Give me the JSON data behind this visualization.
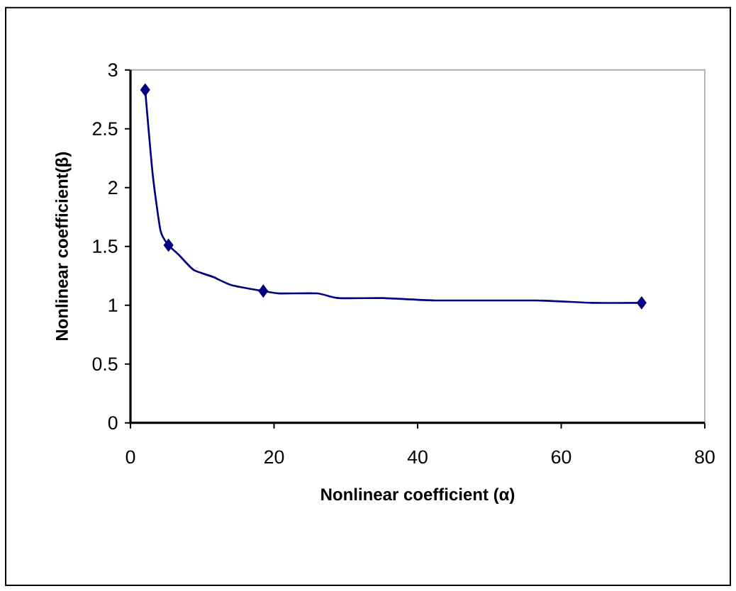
{
  "chart_data": {
    "type": "line",
    "xlabel": "Nonlinear coefficient (α)",
    "ylabel": "Nonlinear coefficient(β)",
    "xlim": [
      0,
      80
    ],
    "ylim": [
      0,
      3
    ],
    "xticks": [
      0,
      20,
      40,
      60,
      80
    ],
    "yticks": [
      0,
      0.5,
      1,
      1.5,
      2,
      2.5,
      3
    ],
    "series": [
      {
        "color": "#000080",
        "marker": "none",
        "x": [
          2.05,
          3.1,
          4.2,
          5.3,
          6.7,
          8.8,
          11.5,
          14.1,
          18.5,
          20.7,
          26,
          29,
          35.2,
          42.5,
          56.4,
          64.3,
          71.2
        ],
        "values": [
          2.83,
          2.11,
          1.63,
          1.51,
          1.43,
          1.3,
          1.24,
          1.17,
          1.12,
          1.1,
          1.1,
          1.06,
          1.06,
          1.04,
          1.04,
          1.02,
          1.02
        ]
      },
      {
        "type": "scatter",
        "color": "#000080",
        "marker": "diamond",
        "x": [
          2.05,
          5.3,
          18.5,
          71.2
        ],
        "values": [
          2.83,
          1.51,
          1.12,
          1.02
        ]
      }
    ]
  }
}
